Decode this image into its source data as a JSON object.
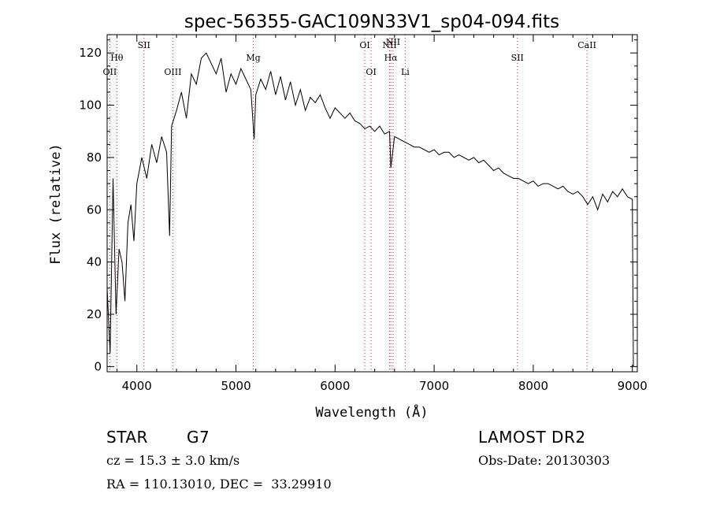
{
  "chart_data": {
    "type": "line",
    "title": "spec-56355-GAC109N33V1_sp04-094.fits",
    "xlabel": "Wavelength (Å)",
    "ylabel": "Flux (relative)",
    "xlim": [
      3700,
      9050
    ],
    "ylim": [
      -2,
      127
    ],
    "x_ticks": [
      4000,
      5000,
      6000,
      7000,
      8000,
      9000
    ],
    "y_ticks": [
      0,
      20,
      40,
      60,
      80,
      100,
      120
    ],
    "grid": false,
    "legend": "none",
    "line_color": "#000000",
    "marker_color": "#cc2a2a",
    "series": [
      {
        "x": [
          3700,
          3730,
          3760,
          3790,
          3820,
          3850,
          3880,
          3910,
          3940,
          3970,
          4000,
          4050,
          4100,
          4150,
          4200,
          4250,
          4300,
          4330,
          4350,
          4400,
          4450,
          4500,
          4550,
          4600,
          4650,
          4700,
          4750,
          4800,
          4850,
          4900,
          4950,
          5000,
          5050,
          5100,
          5150,
          5183,
          5200,
          5250,
          5300,
          5350,
          5400,
          5450,
          5500,
          5550,
          5600,
          5650,
          5700,
          5750,
          5800,
          5850,
          5900,
          5950,
          6000,
          6050,
          6100,
          6150,
          6200,
          6250,
          6300,
          6350,
          6400,
          6450,
          6500,
          6550,
          6563,
          6600,
          6650,
          6700,
          6750,
          6800,
          6850,
          6900,
          6950,
          7000,
          7050,
          7100,
          7150,
          7200,
          7250,
          7300,
          7350,
          7400,
          7450,
          7500,
          7550,
          7600,
          7650,
          7700,
          7750,
          7800,
          7850,
          7900,
          7950,
          8000,
          8050,
          8100,
          8150,
          8200,
          8250,
          8300,
          8350,
          8400,
          8450,
          8500,
          8550,
          8600,
          8650,
          8700,
          8750,
          8800,
          8850,
          8900,
          8950,
          9000,
          9010
        ],
        "y": [
          30,
          5,
          72,
          20,
          45,
          40,
          25,
          55,
          62,
          48,
          70,
          80,
          72,
          85,
          78,
          88,
          82,
          50,
          92,
          98,
          105,
          95,
          112,
          108,
          118,
          120,
          116,
          112,
          118,
          105,
          112,
          108,
          114,
          110,
          106,
          87,
          104,
          110,
          106,
          113,
          104,
          111,
          102,
          109,
          100,
          106,
          98,
          103,
          101,
          104,
          99,
          95,
          99,
          97,
          95,
          97,
          94,
          93,
          91,
          92,
          90,
          92,
          89,
          90,
          76,
          88,
          87,
          86,
          85,
          84,
          84,
          83,
          82,
          83,
          81,
          82,
          82,
          80,
          81,
          80,
          79,
          80,
          78,
          79,
          77,
          75,
          76,
          74,
          73,
          72,
          72,
          71,
          70,
          71,
          69,
          70,
          70,
          69,
          68,
          69,
          67,
          66,
          67,
          65,
          62,
          65,
          60,
          66,
          63,
          67,
          65,
          68,
          65,
          64,
          0
        ]
      }
    ],
    "lines": [
      {
        "label": "OII",
        "x": 3727,
        "row": 3
      },
      {
        "label": "Hθ",
        "x": 3798,
        "row": 2
      },
      {
        "label": "SII",
        "x": 4072,
        "row": 1
      },
      {
        "label": "OIII",
        "x": 4363,
        "row": 3
      },
      {
        "label": "Mg",
        "x": 5175,
        "row": 2
      },
      {
        "label": "OI",
        "x": 6300,
        "row": 1
      },
      {
        "label": "OI",
        "x": 6364,
        "row": 3
      },
      {
        "label": "NII",
        "x": 6550,
        "row": 1
      },
      {
        "label": "Hα",
        "x": 6563,
        "row": 2
      },
      {
        "label": "NII",
        "x": 6585,
        "row": 0
      },
      {
        "label": "Li",
        "x": 6708,
        "row": 3
      },
      {
        "label": "SII",
        "x": 7840,
        "row": 2
      },
      {
        "label": "CaII",
        "x": 8542,
        "row": 1
      }
    ]
  },
  "info": {
    "object_class": "STAR",
    "subclass": "G7",
    "release": "LAMOST DR2",
    "redshift_text": "cz = 15.3 ± 3.0 km/s",
    "obs_date_text": "Obs-Date: 20130303",
    "coords_text": "RA = 110.13010, DEC =  33.29910"
  }
}
